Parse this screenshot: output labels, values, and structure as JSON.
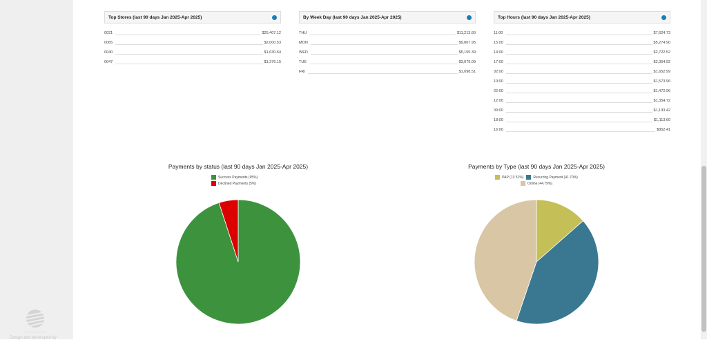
{
  "sidebar": {
    "footer_text": "Design and developed by"
  },
  "panels": [
    {
      "title": "Top Stores (last 90 days Jan 2025-Apr 2025)",
      "icon": "pie-chart-icon",
      "rows": [
        {
          "label": "0021",
          "value": "$25,407.12"
        },
        {
          "label": "0065",
          "value": "$2,000.53"
        },
        {
          "label": "0040",
          "value": "$1,630.64"
        },
        {
          "label": "0047",
          "value": "$1,376.15"
        }
      ]
    },
    {
      "title": "By Week Day (last 90 days Jan 2025-Apr 2025)",
      "icon": "pie-chart-icon",
      "rows": [
        {
          "label": "THU",
          "value": "$11,213.60"
        },
        {
          "label": "MON",
          "value": "$9,867.95"
        },
        {
          "label": "WED",
          "value": "$5,155.39"
        },
        {
          "label": "TUE",
          "value": "$3,079.09"
        },
        {
          "label": "FRI",
          "value": "$1,098.51"
        }
      ]
    },
    {
      "title": "Top Hours (last 90 days Jan 2025-Apr 2025)",
      "icon": "pie-chart-icon",
      "rows": [
        {
          "label": "11:00",
          "value": "$7,624.73"
        },
        {
          "label": "15:00",
          "value": "$5,274.90"
        },
        {
          "label": "14:00",
          "value": "$2,722.52"
        },
        {
          "label": "17:00",
          "value": "$2,354.92"
        },
        {
          "label": "02:00",
          "value": "$1,652.99"
        },
        {
          "label": "10:00",
          "value": "$1,573.96"
        },
        {
          "label": "22:00",
          "value": "$1,472.96"
        },
        {
          "label": "12:00",
          "value": "$1,354.72"
        },
        {
          "label": "09:00",
          "value": "$1,193.42"
        },
        {
          "label": "18:00",
          "value": "$1,113.60"
        },
        {
          "label": "16:00",
          "value": "$952.41"
        }
      ]
    }
  ],
  "chart_data": [
    {
      "type": "pie",
      "title": "Payments by status (last 90 days Jan 2025-Apr 2025)",
      "legend": "top",
      "slices": [
        {
          "label": "Success Payments (95%)",
          "value": 95,
          "color": "#3d933d"
        },
        {
          "label": "Declined Payments (5%)",
          "value": 5,
          "color": "#dd0000"
        }
      ]
    },
    {
      "type": "pie",
      "title": "Payments by Type (last 90 days Jan 2025-Apr 2025)",
      "legend": "top",
      "slices": [
        {
          "label": "PAP (13.51%)",
          "value": 13.51,
          "color": "#c4bf56"
        },
        {
          "label": "Recurring Payment (41.70%)",
          "value": 41.7,
          "color": "#3a7891"
        },
        {
          "label": "Online (44.79%)",
          "value": 44.79,
          "color": "#d9c6a5"
        }
      ]
    }
  ]
}
